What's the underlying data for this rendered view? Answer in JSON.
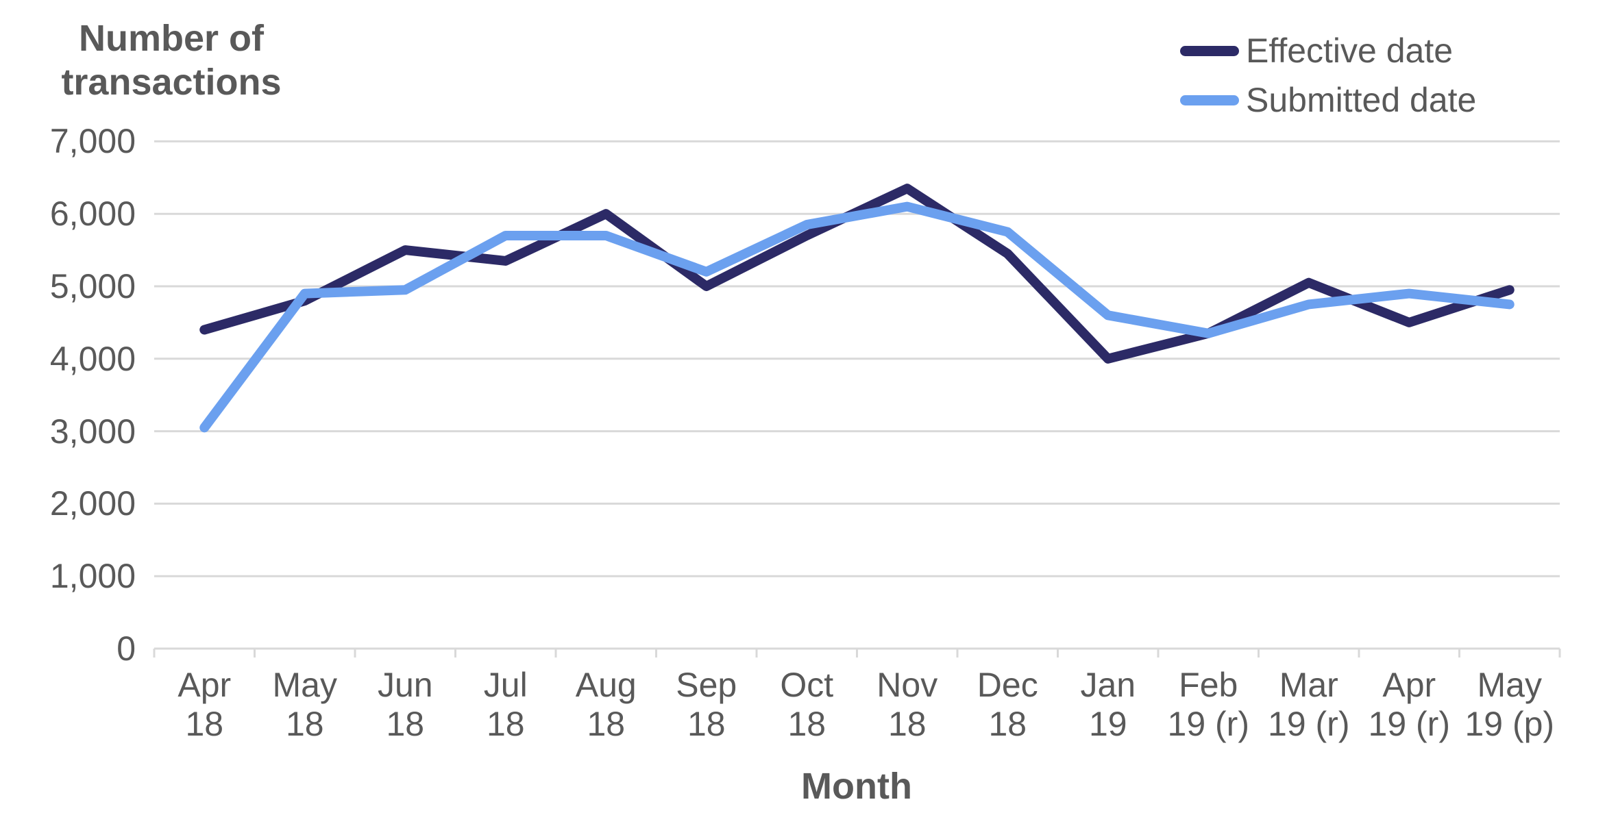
{
  "colors": {
    "effective_line": "#2C2A66",
    "submitted_line": "#6BA0EF",
    "text_gray": "#595959",
    "gridline": "#D9D9D9"
  },
  "legend": [
    {
      "label": "Effective date",
      "color": "#2C2A66"
    },
    {
      "label": "Submitted date",
      "color": "#6BA0EF"
    }
  ],
  "chart_data": {
    "type": "line",
    "title": "",
    "y_axis_label": "Number of transactions",
    "x_axis_label": "Month",
    "ylim": [
      0,
      7000
    ],
    "y_tick_step": 1000,
    "y_ticks": [
      "7,000",
      "6,000",
      "5,000",
      "4,000",
      "3,000",
      "2,000",
      "1,000",
      "0"
    ],
    "grid": "horizontal",
    "legend_position": "top-right",
    "categories": [
      [
        "Apr",
        "18"
      ],
      [
        "May",
        "18"
      ],
      [
        "Jun",
        "18"
      ],
      [
        "Jul",
        "18"
      ],
      [
        "Aug",
        "18"
      ],
      [
        "Sep",
        "18"
      ],
      [
        "Oct",
        "18"
      ],
      [
        "Nov",
        "18"
      ],
      [
        "Dec",
        "18"
      ],
      [
        "Jan",
        "19"
      ],
      [
        "Feb",
        "19 (r)"
      ],
      [
        "Mar",
        "19 (r)"
      ],
      [
        "Apr",
        "19 (r)"
      ],
      [
        "May",
        "19 (p)"
      ]
    ],
    "series": [
      {
        "name": "Effective date",
        "color": "#2C2A66",
        "values": [
          4400,
          4800,
          5500,
          5350,
          6000,
          5000,
          5700,
          6350,
          5450,
          4000,
          4350,
          5050,
          4500,
          4950
        ]
      },
      {
        "name": "Submitted date",
        "color": "#6BA0EF",
        "values": [
          3050,
          4900,
          4950,
          5700,
          5700,
          5200,
          5850,
          6100,
          5750,
          4600,
          4350,
          4750,
          4900,
          4750
        ]
      }
    ]
  }
}
